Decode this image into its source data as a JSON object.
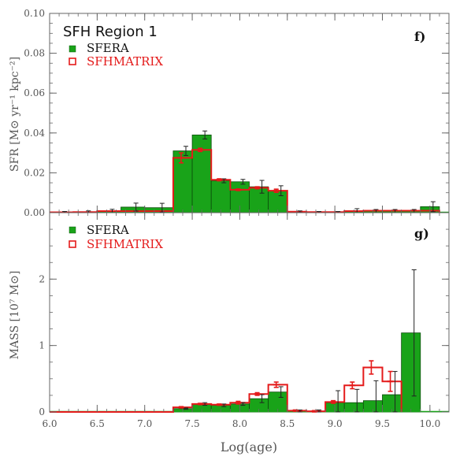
{
  "chart_data": [
    {
      "type": "bar",
      "panel_id": "f",
      "title": "SFH Region 1",
      "panel_label": "f)",
      "ylabel": "SFR [M⊙ yr⁻¹ kpc⁻²]",
      "ylim": [
        0,
        0.1
      ],
      "yticks": [
        0.0,
        0.02,
        0.04,
        0.06,
        0.08,
        0.1
      ],
      "yticklabels": [
        "0.00",
        "0.02",
        "0.04",
        "0.06",
        "0.08",
        "0.10"
      ],
      "legend": {
        "sfera_label": "SFERA",
        "sfhmatrix_label": "SFHMATRIX",
        "placement": "top-left"
      },
      "bin_edges": [
        6.0,
        6.25,
        6.5,
        6.75,
        7.0,
        7.3,
        7.5,
        7.7,
        7.9,
        8.1,
        8.3,
        8.5,
        8.7,
        8.9,
        9.1,
        9.3,
        9.5,
        9.7,
        9.9,
        10.1
      ],
      "series": [
        {
          "name": "SFERA",
          "color": "#19a319",
          "values": [
            0.0002,
            0.0003,
            0.0008,
            0.0028,
            0.0025,
            0.031,
            0.039,
            0.016,
            0.0155,
            0.013,
            0.011,
            0.0005,
            0.0003,
            0.0003,
            0.0008,
            0.0008,
            0.0008,
            0.0008,
            0.003
          ],
          "errors": [
            0.0004,
            0.0006,
            0.0009,
            0.002,
            0.0022,
            0.0023,
            0.002,
            0.001,
            0.0012,
            0.0032,
            0.0025,
            0.0004,
            0.0003,
            0.0003,
            0.0012,
            0.0008,
            0.0008,
            0.0008,
            0.0025
          ]
        },
        {
          "name": "SFHMATRIX",
          "color": "#e41a1a",
          "values": [
            0.0002,
            0.0003,
            0.0008,
            0.0008,
            0.0008,
            0.0275,
            0.0315,
            0.0165,
            0.0115,
            0.0125,
            0.011,
            0.0005,
            0.0003,
            0.0003,
            0.0008,
            0.001,
            0.001,
            0.001,
            0.001
          ],
          "errors": [
            0,
            0,
            0,
            0,
            0,
            0.0025,
            0.0008,
            0.0005,
            0.0004,
            0.0005,
            0.0008,
            0,
            0,
            0,
            0,
            0,
            0,
            0,
            0
          ]
        }
      ]
    },
    {
      "type": "bar",
      "panel_id": "g",
      "panel_label": "g)",
      "xlabel": "Log(age)",
      "ylabel": "MASS [10⁷ M⊙]",
      "xlim": [
        6.0,
        10.2
      ],
      "ylim": [
        0,
        3.0
      ],
      "xticks": [
        6.0,
        6.5,
        7.0,
        7.5,
        8.0,
        8.5,
        9.0,
        9.5,
        10.0
      ],
      "xticklabels": [
        "6.0",
        "6.5",
        "7.0",
        "7.5",
        "8.0",
        "8.5",
        "9.0",
        "9.5",
        "10.0"
      ],
      "yticks": [
        0,
        1,
        2
      ],
      "yticklabels": [
        "0",
        "1",
        "2"
      ],
      "legend": {
        "sfera_label": "SFERA",
        "sfhmatrix_label": "SFHMATRIX",
        "placement": "top-left"
      },
      "bin_edges": [
        6.0,
        6.25,
        6.5,
        6.75,
        7.0,
        7.3,
        7.5,
        7.7,
        7.9,
        8.1,
        8.3,
        8.5,
        8.7,
        8.9,
        9.1,
        9.3,
        9.5,
        9.7,
        9.9,
        10.1
      ],
      "series": [
        {
          "name": "SFERA",
          "color": "#19a319",
          "values": [
            0,
            0,
            0,
            0,
            0,
            0.05,
            0.12,
            0.1,
            0.12,
            0.2,
            0.3,
            0.01,
            0.01,
            0.14,
            0.14,
            0.17,
            0.26,
            1.19
          ],
          "errors": [
            0,
            0,
            0,
            0,
            0,
            0.01,
            0.02,
            0.02,
            0.02,
            0.06,
            0.08,
            0.02,
            0.02,
            0.18,
            0.2,
            0.3,
            0.35,
            0.95
          ]
        },
        {
          "name": "SFHMATRIX",
          "color": "#e41a1a",
          "values": [
            0,
            0,
            0,
            0,
            0,
            0.07,
            0.12,
            0.11,
            0.14,
            0.27,
            0.41,
            0.02,
            0.01,
            0.15,
            0.4,
            0.67,
            0.46
          ],
          "errors": [
            0,
            0,
            0,
            0,
            0,
            0.01,
            0.01,
            0.01,
            0.02,
            0.02,
            0.04,
            0.01,
            0.01,
            0.02,
            0.05,
            0.1,
            0.15
          ]
        }
      ]
    }
  ],
  "sfr_panel_bins": 19,
  "mass_panel_bins": 18
}
